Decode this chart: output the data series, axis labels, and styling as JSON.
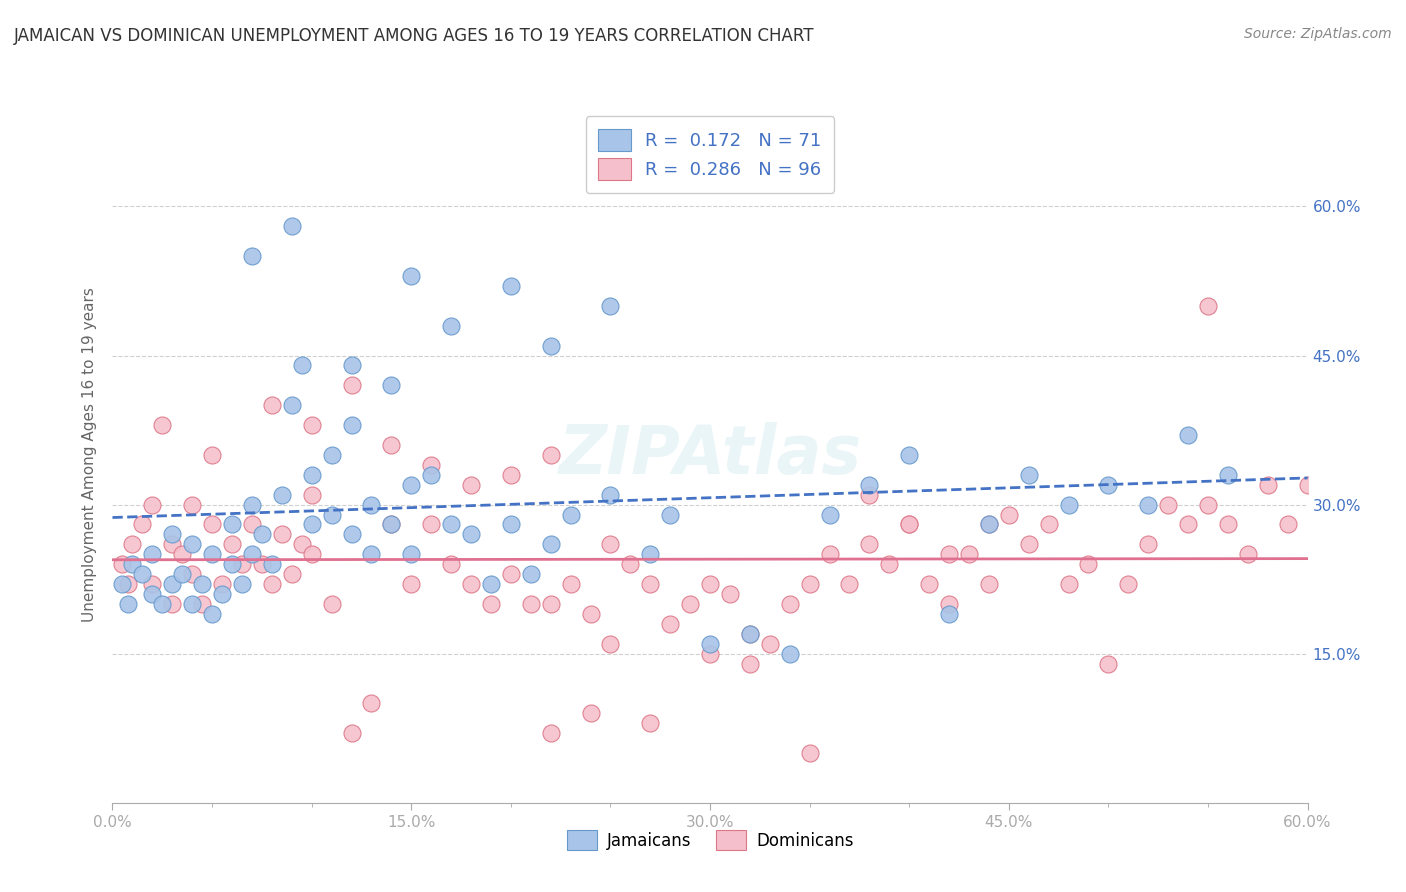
{
  "title": "JAMAICAN VS DOMINICAN UNEMPLOYMENT AMONG AGES 16 TO 19 YEARS CORRELATION CHART",
  "source": "Source: ZipAtlas.com",
  "ylabel": "Unemployment Among Ages 16 to 19 years",
  "xlim": [
    0.0,
    0.6
  ],
  "ylim": [
    0.0,
    0.7
  ],
  "xtick_vals": [
    0.0,
    0.15,
    0.3,
    0.45,
    0.6
  ],
  "xtick_labels": [
    "0.0%",
    "15.0%",
    "30.0%",
    "45.0%",
    "60.0%"
  ],
  "ytick_vals": [
    0.15,
    0.3,
    0.45,
    0.6
  ],
  "ytick_labels": [
    "15.0%",
    "30.0%",
    "45.0%",
    "60.0%"
  ],
  "jamaican_fill": "#a8c4e8",
  "jamaican_edge": "#6699cc",
  "dominican_fill": "#f5c0cc",
  "dominican_edge": "#dd7788",
  "line_jam_color": "#4472c4",
  "line_dom_color": "#e07090",
  "grid_color": "#d0d0d0",
  "axis_color": "#aaaaaa",
  "text_color": "#333333",
  "source_color": "#888888",
  "raxis_color": "#4472c4",
  "background": "#ffffff",
  "watermark": "ZIPAtlas",
  "legend1_label": "R =  0.172   N = 71",
  "legend2_label": "R =  0.286   N = 96",
  "bottom_legend1": "Jamaicans",
  "bottom_legend2": "Dominicans",
  "jam_x": [
    0.005,
    0.008,
    0.01,
    0.015,
    0.02,
    0.02,
    0.025,
    0.03,
    0.03,
    0.035,
    0.04,
    0.04,
    0.045,
    0.05,
    0.05,
    0.055,
    0.06,
    0.06,
    0.065,
    0.07,
    0.07,
    0.075,
    0.08,
    0.085,
    0.09,
    0.095,
    0.1,
    0.1,
    0.11,
    0.11,
    0.12,
    0.12,
    0.13,
    0.13,
    0.14,
    0.15,
    0.15,
    0.16,
    0.17,
    0.18,
    0.19,
    0.2,
    0.21,
    0.22,
    0.23,
    0.25,
    0.27,
    0.28,
    0.3,
    0.32,
    0.34,
    0.36,
    0.38,
    0.4,
    0.42,
    0.44,
    0.46,
    0.48,
    0.5,
    0.52,
    0.54,
    0.56,
    0.15,
    0.17,
    0.2,
    0.22,
    0.25,
    0.07,
    0.09,
    0.12,
    0.14
  ],
  "jam_y": [
    0.22,
    0.2,
    0.24,
    0.23,
    0.21,
    0.25,
    0.2,
    0.22,
    0.27,
    0.23,
    0.2,
    0.26,
    0.22,
    0.19,
    0.25,
    0.21,
    0.24,
    0.28,
    0.22,
    0.25,
    0.3,
    0.27,
    0.24,
    0.31,
    0.4,
    0.44,
    0.28,
    0.33,
    0.29,
    0.35,
    0.27,
    0.38,
    0.25,
    0.3,
    0.28,
    0.32,
    0.25,
    0.33,
    0.28,
    0.27,
    0.22,
    0.28,
    0.23,
    0.26,
    0.29,
    0.31,
    0.25,
    0.29,
    0.16,
    0.17,
    0.15,
    0.29,
    0.32,
    0.35,
    0.19,
    0.28,
    0.33,
    0.3,
    0.32,
    0.3,
    0.37,
    0.33,
    0.53,
    0.48,
    0.52,
    0.46,
    0.5,
    0.55,
    0.58,
    0.44,
    0.42
  ],
  "dom_x": [
    0.005,
    0.008,
    0.01,
    0.015,
    0.02,
    0.02,
    0.025,
    0.03,
    0.03,
    0.035,
    0.04,
    0.04,
    0.045,
    0.05,
    0.05,
    0.055,
    0.06,
    0.065,
    0.07,
    0.075,
    0.08,
    0.085,
    0.09,
    0.095,
    0.1,
    0.1,
    0.11,
    0.12,
    0.13,
    0.14,
    0.15,
    0.16,
    0.17,
    0.18,
    0.19,
    0.2,
    0.21,
    0.22,
    0.23,
    0.24,
    0.25,
    0.26,
    0.27,
    0.28,
    0.29,
    0.3,
    0.31,
    0.32,
    0.33,
    0.34,
    0.35,
    0.36,
    0.37,
    0.38,
    0.39,
    0.4,
    0.41,
    0.42,
    0.43,
    0.44,
    0.45,
    0.46,
    0.47,
    0.48,
    0.49,
    0.5,
    0.51,
    0.52,
    0.53,
    0.54,
    0.55,
    0.56,
    0.57,
    0.58,
    0.59,
    0.6,
    0.25,
    0.27,
    0.3,
    0.32,
    0.08,
    0.1,
    0.12,
    0.14,
    0.16,
    0.18,
    0.2,
    0.22,
    0.38,
    0.4,
    0.42,
    0.44,
    0.35,
    0.55,
    0.22,
    0.24
  ],
  "dom_y": [
    0.24,
    0.22,
    0.26,
    0.28,
    0.22,
    0.3,
    0.38,
    0.2,
    0.26,
    0.25,
    0.23,
    0.3,
    0.2,
    0.28,
    0.35,
    0.22,
    0.26,
    0.24,
    0.28,
    0.24,
    0.22,
    0.27,
    0.23,
    0.26,
    0.25,
    0.31,
    0.2,
    0.07,
    0.1,
    0.28,
    0.22,
    0.28,
    0.24,
    0.22,
    0.2,
    0.23,
    0.2,
    0.2,
    0.22,
    0.19,
    0.26,
    0.24,
    0.22,
    0.18,
    0.2,
    0.22,
    0.21,
    0.17,
    0.16,
    0.2,
    0.22,
    0.25,
    0.22,
    0.26,
    0.24,
    0.28,
    0.22,
    0.2,
    0.25,
    0.28,
    0.29,
    0.26,
    0.28,
    0.22,
    0.24,
    0.14,
    0.22,
    0.26,
    0.3,
    0.28,
    0.3,
    0.28,
    0.25,
    0.32,
    0.28,
    0.32,
    0.16,
    0.08,
    0.15,
    0.14,
    0.4,
    0.38,
    0.42,
    0.36,
    0.34,
    0.32,
    0.33,
    0.35,
    0.31,
    0.28,
    0.25,
    0.22,
    0.05,
    0.5,
    0.07,
    0.09
  ]
}
